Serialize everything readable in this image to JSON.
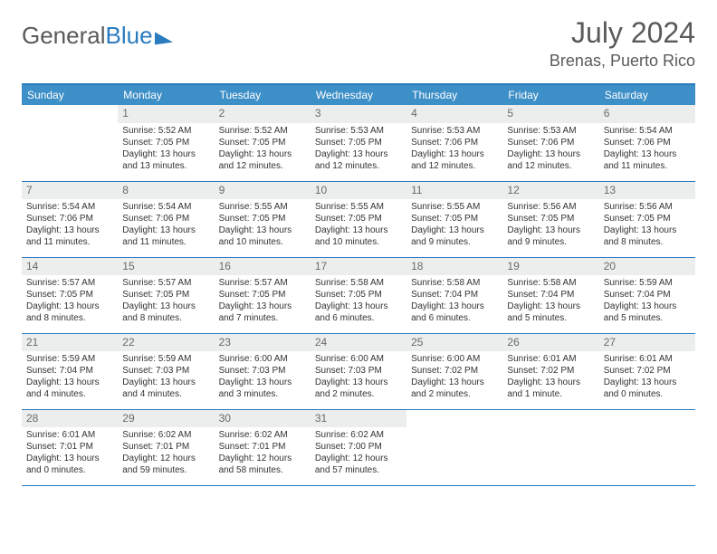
{
  "logo": {
    "word1": "General",
    "word2": "Blue"
  },
  "title": "July 2024",
  "location": "Brenas, Puerto Rico",
  "colors": {
    "header_bg": "#3d8fc7",
    "border": "#2b7bbf",
    "daynum_bg": "#eceded",
    "text": "#333333",
    "muted": "#5a5a5a"
  },
  "day_headers": [
    "Sunday",
    "Monday",
    "Tuesday",
    "Wednesday",
    "Thursday",
    "Friday",
    "Saturday"
  ],
  "weeks": [
    [
      {
        "n": "",
        "lines": []
      },
      {
        "n": "1",
        "lines": [
          "Sunrise: 5:52 AM",
          "Sunset: 7:05 PM",
          "Daylight: 13 hours and 13 minutes."
        ]
      },
      {
        "n": "2",
        "lines": [
          "Sunrise: 5:52 AM",
          "Sunset: 7:05 PM",
          "Daylight: 13 hours and 12 minutes."
        ]
      },
      {
        "n": "3",
        "lines": [
          "Sunrise: 5:53 AM",
          "Sunset: 7:05 PM",
          "Daylight: 13 hours and 12 minutes."
        ]
      },
      {
        "n": "4",
        "lines": [
          "Sunrise: 5:53 AM",
          "Sunset: 7:06 PM",
          "Daylight: 13 hours and 12 minutes."
        ]
      },
      {
        "n": "5",
        "lines": [
          "Sunrise: 5:53 AM",
          "Sunset: 7:06 PM",
          "Daylight: 13 hours and 12 minutes."
        ]
      },
      {
        "n": "6",
        "lines": [
          "Sunrise: 5:54 AM",
          "Sunset: 7:06 PM",
          "Daylight: 13 hours and 11 minutes."
        ]
      }
    ],
    [
      {
        "n": "7",
        "lines": [
          "Sunrise: 5:54 AM",
          "Sunset: 7:06 PM",
          "Daylight: 13 hours and 11 minutes."
        ]
      },
      {
        "n": "8",
        "lines": [
          "Sunrise: 5:54 AM",
          "Sunset: 7:06 PM",
          "Daylight: 13 hours and 11 minutes."
        ]
      },
      {
        "n": "9",
        "lines": [
          "Sunrise: 5:55 AM",
          "Sunset: 7:05 PM",
          "Daylight: 13 hours and 10 minutes."
        ]
      },
      {
        "n": "10",
        "lines": [
          "Sunrise: 5:55 AM",
          "Sunset: 7:05 PM",
          "Daylight: 13 hours and 10 minutes."
        ]
      },
      {
        "n": "11",
        "lines": [
          "Sunrise: 5:55 AM",
          "Sunset: 7:05 PM",
          "Daylight: 13 hours and 9 minutes."
        ]
      },
      {
        "n": "12",
        "lines": [
          "Sunrise: 5:56 AM",
          "Sunset: 7:05 PM",
          "Daylight: 13 hours and 9 minutes."
        ]
      },
      {
        "n": "13",
        "lines": [
          "Sunrise: 5:56 AM",
          "Sunset: 7:05 PM",
          "Daylight: 13 hours and 8 minutes."
        ]
      }
    ],
    [
      {
        "n": "14",
        "lines": [
          "Sunrise: 5:57 AM",
          "Sunset: 7:05 PM",
          "Daylight: 13 hours and 8 minutes."
        ]
      },
      {
        "n": "15",
        "lines": [
          "Sunrise: 5:57 AM",
          "Sunset: 7:05 PM",
          "Daylight: 13 hours and 8 minutes."
        ]
      },
      {
        "n": "16",
        "lines": [
          "Sunrise: 5:57 AM",
          "Sunset: 7:05 PM",
          "Daylight: 13 hours and 7 minutes."
        ]
      },
      {
        "n": "17",
        "lines": [
          "Sunrise: 5:58 AM",
          "Sunset: 7:05 PM",
          "Daylight: 13 hours and 6 minutes."
        ]
      },
      {
        "n": "18",
        "lines": [
          "Sunrise: 5:58 AM",
          "Sunset: 7:04 PM",
          "Daylight: 13 hours and 6 minutes."
        ]
      },
      {
        "n": "19",
        "lines": [
          "Sunrise: 5:58 AM",
          "Sunset: 7:04 PM",
          "Daylight: 13 hours and 5 minutes."
        ]
      },
      {
        "n": "20",
        "lines": [
          "Sunrise: 5:59 AM",
          "Sunset: 7:04 PM",
          "Daylight: 13 hours and 5 minutes."
        ]
      }
    ],
    [
      {
        "n": "21",
        "lines": [
          "Sunrise: 5:59 AM",
          "Sunset: 7:04 PM",
          "Daylight: 13 hours and 4 minutes."
        ]
      },
      {
        "n": "22",
        "lines": [
          "Sunrise: 5:59 AM",
          "Sunset: 7:03 PM",
          "Daylight: 13 hours and 4 minutes."
        ]
      },
      {
        "n": "23",
        "lines": [
          "Sunrise: 6:00 AM",
          "Sunset: 7:03 PM",
          "Daylight: 13 hours and 3 minutes."
        ]
      },
      {
        "n": "24",
        "lines": [
          "Sunrise: 6:00 AM",
          "Sunset: 7:03 PM",
          "Daylight: 13 hours and 2 minutes."
        ]
      },
      {
        "n": "25",
        "lines": [
          "Sunrise: 6:00 AM",
          "Sunset: 7:02 PM",
          "Daylight: 13 hours and 2 minutes."
        ]
      },
      {
        "n": "26",
        "lines": [
          "Sunrise: 6:01 AM",
          "Sunset: 7:02 PM",
          "Daylight: 13 hours and 1 minute."
        ]
      },
      {
        "n": "27",
        "lines": [
          "Sunrise: 6:01 AM",
          "Sunset: 7:02 PM",
          "Daylight: 13 hours and 0 minutes."
        ]
      }
    ],
    [
      {
        "n": "28",
        "lines": [
          "Sunrise: 6:01 AM",
          "Sunset: 7:01 PM",
          "Daylight: 13 hours and 0 minutes."
        ]
      },
      {
        "n": "29",
        "lines": [
          "Sunrise: 6:02 AM",
          "Sunset: 7:01 PM",
          "Daylight: 12 hours and 59 minutes."
        ]
      },
      {
        "n": "30",
        "lines": [
          "Sunrise: 6:02 AM",
          "Sunset: 7:01 PM",
          "Daylight: 12 hours and 58 minutes."
        ]
      },
      {
        "n": "31",
        "lines": [
          "Sunrise: 6:02 AM",
          "Sunset: 7:00 PM",
          "Daylight: 12 hours and 57 minutes."
        ]
      },
      {
        "n": "",
        "lines": []
      },
      {
        "n": "",
        "lines": []
      },
      {
        "n": "",
        "lines": []
      }
    ]
  ]
}
